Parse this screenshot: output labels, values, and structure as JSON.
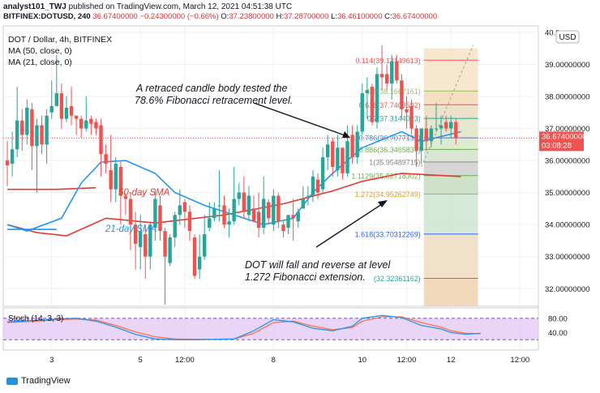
{
  "header": {
    "author": "analyst101_TWJ",
    "published": "published on TradingView.com, March 12, 2021 04:51:38 UTC",
    "symbol": "BITFINEX:DOTUSD, 240",
    "last": "36.67400000",
    "change": "−0.24300000 (−0.66%)",
    "o_label": "O:",
    "o": "37.23800000",
    "h_label": "H:",
    "h": "37.28700000",
    "l_label": "L:",
    "l": "36.46100000",
    "c_label": "C:",
    "c": "36.67400000"
  },
  "legend": {
    "title": "DOT / Dollar, 4h, BITFINEX",
    "ma50": "MA (50, close, 0)",
    "ma21": "MA (21, close, 0)"
  },
  "annotations": {
    "top_line1": "A retraced candle body tested the",
    "top_line2": "78.6% Fibonacci retracement level.",
    "bottom_line1": "DOT will fall and reverse at level",
    "bottom_line2": "1.272 Fibonacci extension.",
    "sma50": "50-day SMA",
    "sma21": "21-day SMA"
  },
  "price_badge": {
    "price": "36.67400000",
    "countdown": "03:08:28"
  },
  "currency": "USD",
  "footer": {
    "brand": "TradingView"
  },
  "colors": {
    "up": "#26a69a",
    "down": "#ef5350",
    "ma50": "#e53935",
    "ma21": "#2196f3"
  },
  "chart_data": {
    "type": "candlestick",
    "ylim": [
      31.45,
      40.2
    ],
    "y_ticks": [
      {
        "v": 40.0,
        "label": "40.0"
      },
      {
        "v": 39.0,
        "label": "39.00000000"
      },
      {
        "v": 38.0,
        "label": "38.00000000"
      },
      {
        "v": 37.0,
        "label": "37.00000000"
      },
      {
        "v": 36.0,
        "label": "36.00000000"
      },
      {
        "v": 35.0,
        "label": "35.00000000"
      },
      {
        "v": 34.0,
        "label": "34.00000000"
      },
      {
        "v": 33.0,
        "label": "33.00000000"
      },
      {
        "v": 32.0,
        "label": "32.00000000"
      }
    ],
    "x_ticks": [
      {
        "i": 9,
        "label": "3"
      },
      {
        "i": 27,
        "label": "5"
      },
      {
        "i": 36,
        "label": "12:00"
      },
      {
        "i": 54,
        "label": "8"
      },
      {
        "i": 72,
        "label": "10"
      },
      {
        "i": 81,
        "label": "12:00"
      },
      {
        "i": 90,
        "label": "12"
      },
      {
        "i": 104,
        "label": "12:00"
      }
    ],
    "candles": [
      [
        36.0,
        35.85,
        36.6,
        35.2
      ],
      [
        35.9,
        36.35,
        36.9,
        35.5
      ],
      [
        36.35,
        37.25,
        38.3,
        36.1
      ],
      [
        37.25,
        36.8,
        37.6,
        36.3
      ],
      [
        36.8,
        37.65,
        37.9,
        36.5
      ],
      [
        37.6,
        36.45,
        37.8,
        35.7
      ],
      [
        36.45,
        37.1,
        37.3,
        35.0
      ],
      [
        37.1,
        36.5,
        37.4,
        36.2
      ],
      [
        36.5,
        37.4,
        37.6,
        35.9
      ],
      [
        37.5,
        37.7,
        38.5,
        37.3
      ],
      [
        37.7,
        38.1,
        39.3,
        37.9
      ],
      [
        38.1,
        37.3,
        38.4,
        37.0
      ],
      [
        37.3,
        37.65,
        38.0,
        37.2
      ],
      [
        37.7,
        37.4,
        38.3,
        37.1
      ],
      [
        37.4,
        37.3,
        37.4,
        36.8
      ],
      [
        37.3,
        37.0,
        37.4,
        36.7
      ],
      [
        37.0,
        37.25,
        38.0,
        36.9
      ],
      [
        37.3,
        37.15,
        37.4,
        36.8
      ],
      [
        37.2,
        37.0,
        37.3,
        36.8
      ],
      [
        37.1,
        36.2,
        37.3,
        35.5
      ],
      [
        36.2,
        35.9,
        36.5,
        35.6
      ],
      [
        35.7,
        35.1,
        36.8,
        34.7
      ],
      [
        35.1,
        35.9,
        36.1,
        34.7
      ],
      [
        35.8,
        34.9,
        36.0,
        34.0
      ],
      [
        34.9,
        34.8,
        35.0,
        34.3
      ],
      [
        34.8,
        34.0,
        35.0,
        33.2
      ],
      [
        34.0,
        33.4,
        34.4,
        32.6
      ],
      [
        33.3,
        33.8,
        34.3,
        32.6
      ],
      [
        33.7,
        33.0,
        34.0,
        32.3
      ],
      [
        33.0,
        34.0,
        34.1,
        32.6
      ],
      [
        33.9,
        34.8,
        35.1,
        33.5
      ],
      [
        34.6,
        33.8,
        34.9,
        33.5
      ],
      [
        33.8,
        33.0,
        33.9,
        31.5
      ],
      [
        32.8,
        33.6,
        33.7,
        32.7
      ],
      [
        33.6,
        34.3,
        34.4,
        33.3
      ],
      [
        34.3,
        34.6,
        35.1,
        34.0
      ],
      [
        34.7,
        34.4,
        34.8,
        33.9
      ],
      [
        34.4,
        33.8,
        34.6,
        33.5
      ],
      [
        33.6,
        32.4,
        33.7,
        32.3
      ],
      [
        32.6,
        33.0,
        33.7,
        32.3
      ],
      [
        33.0,
        33.7,
        34.3,
        32.9
      ],
      [
        33.9,
        34.2,
        34.7,
        33.8
      ],
      [
        34.2,
        34.5,
        34.7,
        34.1
      ],
      [
        34.6,
        34.6,
        35.7,
        34.1
      ],
      [
        34.6,
        34.0,
        34.9,
        33.9
      ],
      [
        34.0,
        34.1,
        34.5,
        33.6
      ],
      [
        34.1,
        34.8,
        35.8,
        34.0
      ],
      [
        34.8,
        35.0,
        35.3,
        34.6
      ],
      [
        35.0,
        34.4,
        35.5,
        34.2
      ],
      [
        34.3,
        34.9,
        35.2,
        34.1
      ],
      [
        34.5,
        34.1,
        34.9,
        34.1
      ],
      [
        34.4,
        33.9,
        35.0,
        33.6
      ],
      [
        33.9,
        34.8,
        35.5,
        33.7
      ],
      [
        34.7,
        34.2,
        34.8,
        34.0
      ],
      [
        34.0,
        34.9,
        35.1,
        33.8
      ],
      [
        34.9,
        34.1,
        35.0,
        33.9
      ],
      [
        34.0,
        33.8,
        34.1,
        33.6
      ],
      [
        33.9,
        34.3,
        34.3,
        33.7
      ],
      [
        34.3,
        34.2,
        34.8,
        33.5
      ],
      [
        34.1,
        34.4,
        34.5,
        33.9
      ],
      [
        34.5,
        34.8,
        35.2,
        34.5
      ],
      [
        34.9,
        34.9,
        35.2,
        34.6
      ],
      [
        34.9,
        35.5,
        35.7,
        34.7
      ],
      [
        35.4,
        35.0,
        35.6,
        34.8
      ],
      [
        35.1,
        36.1,
        36.4,
        35.0
      ],
      [
        36.1,
        36.5,
        36.8,
        35.7
      ],
      [
        36.6,
        35.8,
        36.7,
        35.5
      ],
      [
        35.7,
        36.4,
        36.8,
        35.5
      ],
      [
        36.4,
        35.6,
        36.4,
        35.4
      ],
      [
        35.6,
        36.6,
        37.1,
        35.5
      ],
      [
        36.8,
        36.1,
        37.1,
        35.9
      ],
      [
        36.1,
        36.9,
        37.1,
        35.9
      ],
      [
        36.9,
        38.1,
        38.4,
        36.8
      ],
      [
        38.1,
        38.2,
        38.6,
        37.3
      ],
      [
        38.3,
        37.2,
        38.4,
        37.1
      ],
      [
        37.2,
        38.7,
        38.9,
        37.0
      ],
      [
        38.7,
        38.6,
        39.6,
        38.2
      ],
      [
        38.7,
        38.4,
        39.0,
        38.2
      ],
      [
        38.4,
        39.1,
        39.3,
        37.9
      ],
      [
        39.1,
        38.5,
        39.3,
        38.4
      ],
      [
        38.5,
        37.6,
        38.7,
        37.3
      ],
      [
        37.6,
        37.5,
        38.0,
        37.0
      ],
      [
        37.7,
        37.0,
        37.9,
        36.8
      ],
      [
        37.0,
        36.3,
        37.1,
        35.8
      ],
      [
        36.3,
        37.0,
        37.0,
        35.9
      ],
      [
        37.0,
        36.6,
        37.4,
        36.3
      ],
      [
        36.6,
        37.0,
        37.1,
        36.4
      ],
      [
        37.0,
        37.0,
        37.8,
        36.9
      ],
      [
        37.0,
        37.1,
        37.4,
        36.5
      ],
      [
        37.2,
        37.0,
        37.4,
        36.9
      ],
      [
        37.0,
        37.2,
        37.4,
        36.7
      ],
      [
        37.2,
        36.7,
        37.3,
        36.5
      ]
    ],
    "ma50": [
      [
        0,
        35.1
      ],
      [
        10,
        35.1
      ],
      [
        18,
        35.15
      ]
    ],
    "ma50_extra": [
      [
        0,
        34.0
      ],
      [
        6,
        33.75
      ],
      [
        12,
        33.65
      ],
      [
        20,
        34.2
      ],
      [
        30,
        34.05
      ],
      [
        44,
        34.3
      ],
      [
        56,
        34.65
      ],
      [
        66,
        35.05
      ],
      [
        72,
        35.35
      ],
      [
        80,
        35.6
      ],
      [
        92,
        35.5
      ]
    ],
    "ma21": [
      [
        0,
        34.0
      ],
      [
        4,
        33.8
      ],
      [
        11,
        34.2
      ],
      [
        15,
        35.3
      ],
      [
        19,
        35.95
      ],
      [
        24,
        36.0
      ],
      [
        30,
        35.6
      ],
      [
        34,
        35.0
      ],
      [
        40,
        34.6
      ],
      [
        46,
        34.3
      ],
      [
        52,
        34.0
      ],
      [
        58,
        34.2
      ],
      [
        62,
        35.0
      ],
      [
        66,
        35.6
      ],
      [
        72,
        36.4
      ],
      [
        80,
        36.9
      ],
      [
        84,
        36.6
      ],
      [
        92,
        36.9
      ]
    ],
    "ma21_extra": [
      [
        0,
        33.85
      ],
      [
        10,
        33.85
      ]
    ],
    "fib_levels": [
      {
        "ratio": "0.114",
        "price": "39.13149613",
        "v": 39.131,
        "color": "#ef5350"
      },
      {
        "ratio": "0.5",
        "price": "38.1667161",
        "v": 38.167,
        "color": "#a0c060"
      },
      {
        "ratio": "0.618",
        "price": "37.7403592",
        "v": 37.74,
        "color": "#ef5350"
      },
      {
        "ratio": "0.7",
        "price": "37.3144023",
        "v": 37.314,
        "color": "#26a69a"
      },
      {
        "ratio": "0.786",
        "price": "36.7077132",
        "v": 36.708,
        "color": "#2196f3"
      },
      {
        "ratio": "0.886",
        "price": "36.3465837",
        "v": 36.347,
        "color": "#6ab04c"
      },
      {
        "ratio": "1",
        "price": "35.95489715",
        "v": 35.955,
        "color": "#888888"
      },
      {
        "ratio": "1.1129",
        "price": "35.52718302",
        "v": 35.527,
        "color": "#6ab04c"
      },
      {
        "ratio": "1.272",
        "price": "34.95262749",
        "v": 34.953,
        "color": "#e0a020"
      },
      {
        "ratio": "1.618",
        "price": "33.70312269",
        "v": 33.703,
        "color": "#2962ff"
      },
      {
        "ratio": "",
        "price": "32.32361162",
        "v": 32.324,
        "color": "#26a69a"
      }
    ],
    "stoch": {
      "label": "Stoch (14, 3, 3)",
      "ylim": [
        0,
        100
      ],
      "y_ticks": [
        {
          "v": 80,
          "label": "80.00"
        },
        {
          "v": 40,
          "label": "40.00"
        }
      ],
      "bands": [
        80,
        20
      ],
      "k": [
        [
          0,
          70
        ],
        [
          6,
          74
        ],
        [
          10,
          78
        ],
        [
          14,
          80
        ],
        [
          18,
          72
        ],
        [
          22,
          55
        ],
        [
          26,
          35
        ],
        [
          30,
          22
        ],
        [
          34,
          20
        ],
        [
          38,
          20
        ],
        [
          42,
          21
        ],
        [
          46,
          22
        ],
        [
          50,
          45
        ],
        [
          54,
          76
        ],
        [
          58,
          70
        ],
        [
          62,
          52
        ],
        [
          66,
          45
        ],
        [
          70,
          58
        ],
        [
          72,
          80
        ],
        [
          76,
          88
        ],
        [
          80,
          82
        ],
        [
          84,
          60
        ],
        [
          88,
          50
        ],
        [
          90,
          40
        ],
        [
          93,
          35
        ],
        [
          96,
          38
        ]
      ],
      "d": [
        [
          0,
          68
        ],
        [
          6,
          72
        ],
        [
          10,
          76
        ],
        [
          14,
          78
        ],
        [
          18,
          75
        ],
        [
          22,
          60
        ],
        [
          26,
          42
        ],
        [
          30,
          28
        ],
        [
          34,
          22
        ],
        [
          38,
          21
        ],
        [
          42,
          21
        ],
        [
          46,
          22
        ],
        [
          50,
          38
        ],
        [
          54,
          68
        ],
        [
          58,
          72
        ],
        [
          62,
          58
        ],
        [
          66,
          48
        ],
        [
          70,
          54
        ],
        [
          72,
          72
        ],
        [
          76,
          84
        ],
        [
          80,
          84
        ],
        [
          84,
          68
        ],
        [
          88,
          55
        ],
        [
          90,
          45
        ],
        [
          93,
          38
        ],
        [
          96,
          37
        ]
      ]
    }
  }
}
